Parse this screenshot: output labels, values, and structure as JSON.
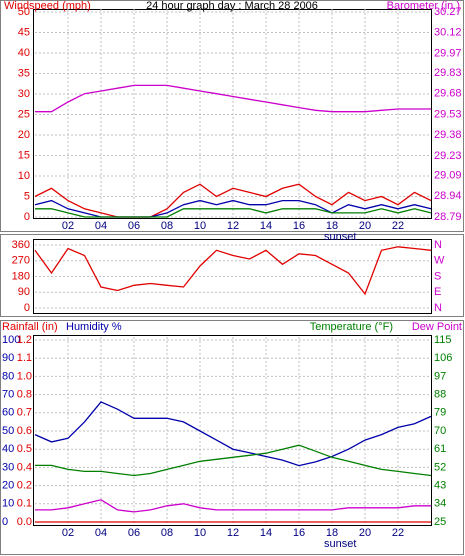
{
  "chart_data": [
    {
      "type": "line",
      "title": "24 hour graph day : March 28 2006",
      "ylabel": "Windspeed (mph)",
      "y2label": "Barometer (in.)",
      "annotation": {
        "text": "sunset",
        "x": 18.5
      },
      "x": [
        0,
        1,
        2,
        3,
        4,
        5,
        6,
        7,
        8,
        9,
        10,
        11,
        12,
        13,
        14,
        15,
        16,
        17,
        18,
        19,
        20,
        21,
        22,
        23,
        24
      ],
      "xlim": [
        0,
        24
      ],
      "xticks": [
        {
          "value": 2,
          "label": "02"
        },
        {
          "value": 4,
          "label": "04"
        },
        {
          "value": 6,
          "label": "06"
        },
        {
          "value": 8,
          "label": "08"
        },
        10,
        12,
        14,
        16,
        18,
        20,
        22
      ],
      "ylim": [
        0,
        50
      ],
      "yticks": [
        0,
        5,
        10,
        15,
        20,
        25,
        30,
        35,
        40,
        45,
        50
      ],
      "y_color": "#e00000",
      "y2lim": [
        28.79,
        30.27
      ],
      "y2ticks": [
        28.79,
        28.94,
        29.09,
        29.23,
        29.38,
        29.53,
        29.68,
        29.83,
        29.97,
        30.12,
        30.27
      ],
      "y2_color": "#cc00cc",
      "grid": true,
      "series": [
        {
          "color": "#e00000",
          "values": [
            5,
            7,
            4,
            2,
            1,
            0,
            0,
            0,
            2,
            6,
            8,
            5,
            7,
            6,
            5,
            7,
            8,
            5,
            3,
            6,
            4,
            5,
            3,
            6,
            4
          ]
        },
        {
          "color": "#0000aa",
          "values": [
            3,
            4,
            2,
            1,
            0,
            0,
            0,
            0,
            1,
            3,
            4,
            3,
            4,
            3,
            3,
            4,
            4,
            3,
            1,
            3,
            2,
            3,
            2,
            3,
            2
          ]
        },
        {
          "color": "#008000",
          "values": [
            2,
            2,
            1,
            0,
            0,
            0,
            0,
            0,
            0,
            2,
            2,
            2,
            2,
            2,
            1,
            2,
            2,
            2,
            1,
            1,
            1,
            2,
            1,
            2,
            1
          ]
        },
        {
          "color": "#cc00cc",
          "axis": "y2",
          "values": [
            29.55,
            29.55,
            29.62,
            29.68,
            29.7,
            29.72,
            29.74,
            29.74,
            29.74,
            29.72,
            29.7,
            29.68,
            29.66,
            29.64,
            29.62,
            29.6,
            29.58,
            29.56,
            29.55,
            29.55,
            29.55,
            29.56,
            29.57,
            29.57,
            29.57
          ]
        }
      ]
    },
    {
      "type": "line",
      "x": [
        0,
        1,
        2,
        3,
        4,
        5,
        6,
        7,
        8,
        9,
        10,
        11,
        12,
        13,
        14,
        15,
        16,
        17,
        18,
        19,
        20,
        21,
        22,
        23,
        24
      ],
      "xlim": [
        0,
        24
      ],
      "ylim": [
        0,
        360
      ],
      "yticks": [
        0,
        90,
        180,
        270,
        360
      ],
      "y_color": "#e00000",
      "y2lim": [
        0,
        360
      ],
      "y2ticks": [
        {
          "value": 0,
          "label": "N"
        },
        {
          "value": 90,
          "label": "E"
        },
        {
          "value": 180,
          "label": "S"
        },
        {
          "value": 270,
          "label": "W"
        },
        {
          "value": 360,
          "label": "N"
        }
      ],
      "y2_color": "#cc00cc",
      "grid": true,
      "series": [
        {
          "color": "#e00000",
          "values": [
            330,
            200,
            340,
            300,
            120,
            100,
            130,
            140,
            130,
            120,
            240,
            330,
            300,
            280,
            330,
            250,
            310,
            300,
            250,
            200,
            80,
            330,
            350,
            340,
            330
          ]
        }
      ]
    },
    {
      "type": "line",
      "ylabel": "Humidity %",
      "y3label": "Rainfall (in)",
      "y2label": "Temperature (°F)",
      "y4label": "Dew Point",
      "annotation": {
        "text": "sunset",
        "x": 18.5
      },
      "x": [
        0,
        1,
        2,
        3,
        4,
        5,
        6,
        7,
        8,
        9,
        10,
        11,
        12,
        13,
        14,
        15,
        16,
        17,
        18,
        19,
        20,
        21,
        22,
        23,
        24
      ],
      "xlim": [
        0,
        24
      ],
      "xticks": [
        {
          "value": 2,
          "label": "02"
        },
        {
          "value": 4,
          "label": "04"
        },
        {
          "value": 6,
          "label": "06"
        },
        {
          "value": 8,
          "label": "08"
        },
        10,
        12,
        14,
        16,
        18,
        20,
        22
      ],
      "ylim": [
        0,
        100
      ],
      "yticks": [
        0,
        10,
        20,
        30,
        40,
        50,
        60,
        70,
        80,
        90,
        100
      ],
      "y_color": "#0000aa",
      "y3lim": [
        0,
        1.2
      ],
      "y3ticks": [
        {
          "value": 0,
          "label": "0.0"
        },
        {
          "value": 0.12,
          "label": "0.1"
        },
        {
          "value": 0.24,
          "label": "0.2"
        },
        {
          "value": 0.36,
          "label": "0.4"
        },
        {
          "value": 0.48,
          "label": "0.5"
        },
        {
          "value": 0.6,
          "label": "0.6"
        },
        {
          "value": 0.72,
          "label": "0.7"
        },
        {
          "value": 0.84,
          "label": "0.8"
        },
        {
          "value": 0.96,
          "label": "1.0"
        },
        {
          "value": 1.08,
          "label": "1.1"
        },
        1.2
      ],
      "y3_color": "#e00000",
      "y2lim": [
        25,
        115
      ],
      "y2ticks": [
        25,
        34,
        43,
        52,
        61,
        70,
        79,
        88,
        97,
        106,
        115
      ],
      "y2_color": "#008000",
      "grid": true,
      "series": [
        {
          "color": "#0000aa",
          "values": [
            48,
            44,
            46,
            55,
            66,
            62,
            57,
            57,
            57,
            55,
            50,
            45,
            40,
            38,
            36,
            34,
            31,
            33,
            36,
            40,
            45,
            48,
            52,
            54,
            58
          ]
        },
        {
          "color": "#008000",
          "axis": "y2",
          "values": [
            53,
            53,
            51,
            50,
            50,
            49,
            48,
            49,
            51,
            53,
            55,
            56,
            57,
            58,
            59,
            61,
            63,
            60,
            57,
            55,
            53,
            51,
            50,
            49,
            48
          ]
        },
        {
          "color": "#cc00cc",
          "axis": "y2",
          "values": [
            31,
            31,
            32,
            34,
            36,
            31,
            30,
            31,
            33,
            34,
            32,
            31,
            31,
            31,
            31,
            31,
            31,
            31,
            31,
            32,
            32,
            32,
            32,
            33,
            33
          ]
        },
        {
          "color": "#e00000",
          "axis": "y3",
          "values": [
            0,
            0,
            0,
            0,
            0,
            0,
            0,
            0,
            0,
            0,
            0,
            0,
            0,
            0,
            0,
            0,
            0,
            0,
            0,
            0,
            0,
            0,
            0,
            0,
            0
          ]
        }
      ]
    }
  ]
}
